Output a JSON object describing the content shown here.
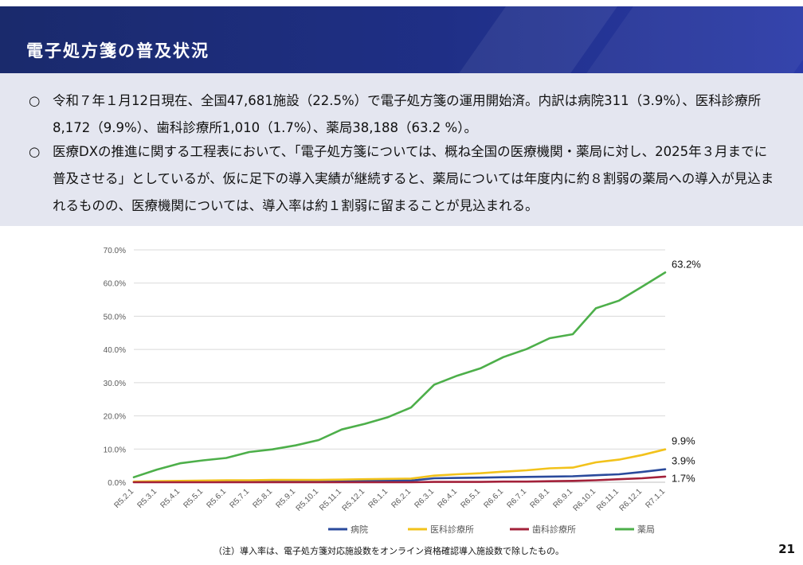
{
  "header": {
    "title": "電子処方箋の普及状況"
  },
  "summary": {
    "bullet_mark": "○",
    "bullets": [
      "令和７年１月12日現在、全国47,681施設（22.5%）で電子処方箋の運用開始済。内訳は病院311（3.9%）、医科診療所8,172（9.9%）、歯科診療所1,010（1.7%）、薬局38,188（63.2 %）。",
      "医療DXの推進に関する工程表において、「電子処方箋については、概ね全国の医療機関・薬局に対し、2025年３月までに普及させる」としているが、仮に足下の導入実績が継続すると、薬局については年度内に約８割弱の薬局への導入が見込まれるものの、医療機関については、導入率は約１割弱に留まることが見込まれる。"
    ]
  },
  "chart_data": {
    "type": "line",
    "title": "",
    "xlabel": "",
    "ylabel": "",
    "ylim": [
      0,
      70
    ],
    "y_ticks": [
      "0.0%",
      "10.0%",
      "20.0%",
      "30.0%",
      "40.0%",
      "50.0%",
      "60.0%",
      "70.0%"
    ],
    "grid": true,
    "legend_position": "bottom",
    "categories": [
      "R5.2.1",
      "R5.3.1",
      "R5.4.1",
      "R5.5.1",
      "R5.6.1",
      "R5.7.1",
      "R5.8.1",
      "R5.9.1",
      "R5.10.1",
      "R5.11.1",
      "R5.12.1",
      "R6.1.1",
      "R6.2.1",
      "R6.3.1",
      "R6.4.1",
      "R6.5.1",
      "R6.6.1",
      "R6.7.1",
      "R6.8.1",
      "R6.9.1",
      "R6.10.1",
      "R6.11.1",
      "R6.12.1",
      "R7.1.1"
    ],
    "series": [
      {
        "name": "病院",
        "color": "#2a4a9c",
        "values": [
          0.1,
          0.1,
          0.2,
          0.2,
          0.3,
          0.3,
          0.3,
          0.3,
          0.3,
          0.4,
          0.4,
          0.5,
          0.5,
          1.2,
          1.3,
          1.4,
          1.5,
          1.6,
          1.7,
          1.8,
          2.1,
          2.4,
          3.1,
          3.9
        ],
        "end_label": "3.9%"
      },
      {
        "name": "医科診療所",
        "color": "#f2c21b",
        "values": [
          0.2,
          0.3,
          0.4,
          0.5,
          0.6,
          0.6,
          0.7,
          0.7,
          0.7,
          0.8,
          0.9,
          1.0,
          1.1,
          2.0,
          2.4,
          2.7,
          3.2,
          3.6,
          4.2,
          4.4,
          6.0,
          6.8,
          8.2,
          9.9
        ],
        "end_label": "9.9%"
      },
      {
        "name": "歯科診療所",
        "color": "#a3213a",
        "values": [
          0.0,
          0.0,
          0.0,
          0.0,
          0.0,
          0.0,
          0.0,
          0.0,
          0.0,
          0.0,
          0.0,
          0.0,
          0.0,
          0.1,
          0.1,
          0.1,
          0.2,
          0.2,
          0.3,
          0.4,
          0.6,
          0.9,
          1.2,
          1.7
        ],
        "end_label": "1.7%"
      },
      {
        "name": "薬局",
        "color": "#4daf4a",
        "values": [
          1.5,
          3.8,
          5.7,
          6.6,
          7.3,
          9.1,
          9.9,
          11.1,
          12.7,
          15.9,
          17.6,
          19.6,
          22.5,
          29.4,
          32.1,
          34.3,
          37.7,
          40.1,
          43.4,
          44.6,
          52.4,
          54.7,
          58.9,
          63.2
        ],
        "end_label": "63.2%"
      }
    ]
  },
  "footnote": "（注）導入率は、電子処方箋対応施設数をオンライン資格確認導入施設数で除したもの。",
  "page_number": "21"
}
